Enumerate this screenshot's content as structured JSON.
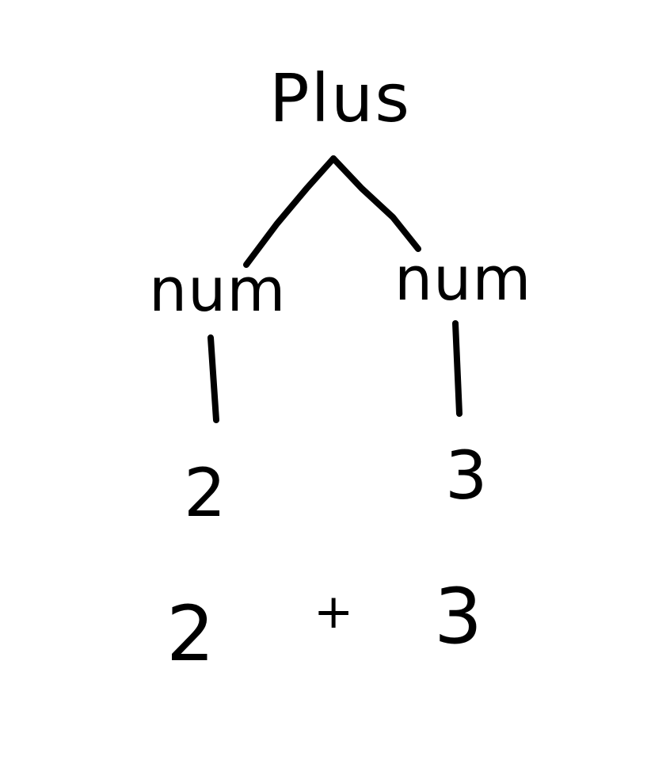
{
  "tree": {
    "root": {
      "label": "Plus",
      "children": [
        {
          "label": "num",
          "child": "2"
        },
        {
          "label": "num",
          "child": "3"
        }
      ]
    }
  },
  "expression": {
    "left": "2",
    "operator": "+",
    "right": "3"
  }
}
